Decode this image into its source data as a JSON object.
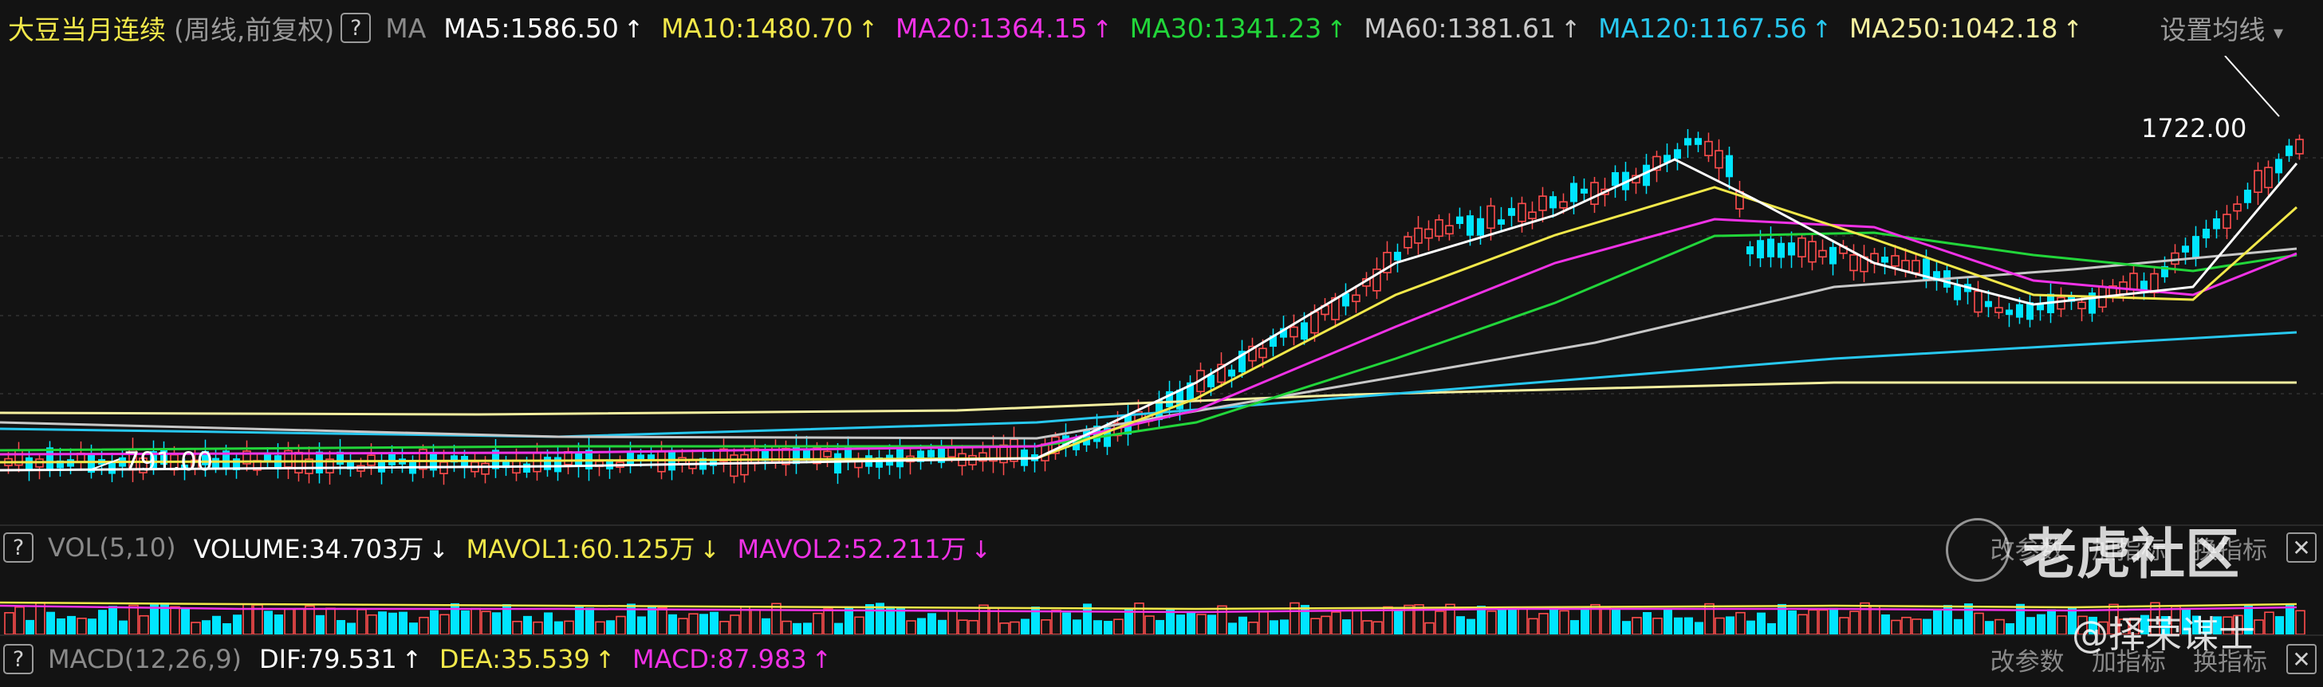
{
  "header": {
    "title": "大豆当月连续",
    "subtitle": "(周线,前复权)",
    "help": "?",
    "ma_label": "MA",
    "settings": "设置均线",
    "settings_icon": "chevron-down-icon",
    "items": [
      {
        "label": "MA5:1586.50",
        "arrow": "↑",
        "color": "#ffffff"
      },
      {
        "label": "MA10:1480.70",
        "arrow": "↑",
        "color": "#f2e84a"
      },
      {
        "label": "MA20:1364.15",
        "arrow": "↑",
        "color": "#f032e6"
      },
      {
        "label": "MA30:1341.23",
        "arrow": "↑",
        "color": "#22d63a"
      },
      {
        "label": "MA60:1381.61",
        "arrow": "↑",
        "color": "#c8c8c8"
      },
      {
        "label": "MA120:1167.56",
        "arrow": "↑",
        "color": "#28c8f0"
      },
      {
        "label": "MA250:1042.18",
        "arrow": "↑",
        "color": "#f5f0a0"
      }
    ]
  },
  "price_chart": {
    "high_label": "1722.00",
    "low_label": "791.00"
  },
  "vol_panel": {
    "help": "?",
    "label": "VOL(5,10)",
    "items": [
      {
        "label": "VOLUME:34.703万",
        "arrow": "↓",
        "color": "#ffffff"
      },
      {
        "label": "MAVOL1:60.125万",
        "arrow": "↓",
        "color": "#f2e84a"
      },
      {
        "label": "MAVOL2:52.211万",
        "arrow": "↓",
        "color": "#f032e6"
      }
    ],
    "links": [
      "改参数",
      "加指标",
      "换指标"
    ],
    "close": "✕"
  },
  "macd_panel": {
    "help": "?",
    "label": "MACD(12,26,9)",
    "items": [
      {
        "label": "DIF:79.531",
        "arrow": "↑",
        "color": "#ffffff"
      },
      {
        "label": "DEA:35.539",
        "arrow": "↑",
        "color": "#f2e84a"
      },
      {
        "label": "MACD:87.983",
        "arrow": "↑",
        "color": "#f032e6"
      }
    ],
    "links": [
      "改参数",
      "加指标",
      "换指标"
    ],
    "close": "✕"
  },
  "watermark": {
    "brand": "老虎社区",
    "author": "@择荣谋士"
  },
  "colors": {
    "up": "#ff4d4d",
    "down": "#00e5ff",
    "background": "#131313"
  }
}
